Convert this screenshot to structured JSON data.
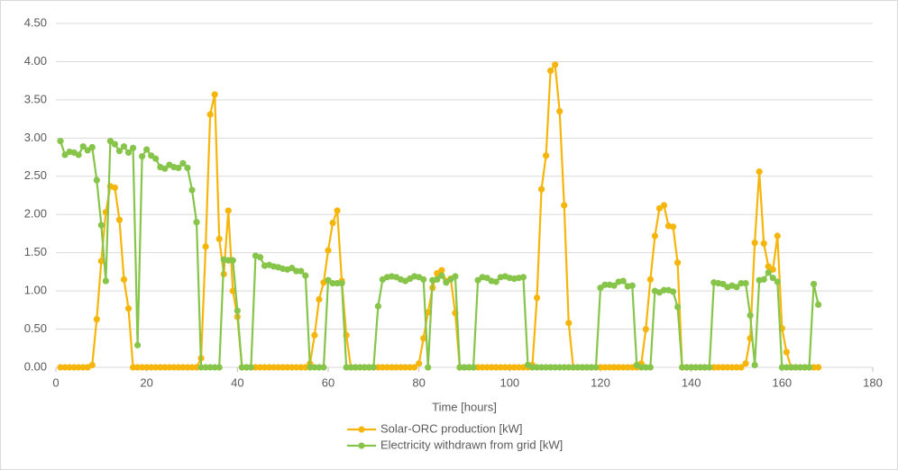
{
  "chart_data": {
    "type": "line",
    "xlabel": "Time [hours]",
    "xlim": [
      0,
      180
    ],
    "xticks": [
      0,
      20,
      40,
      60,
      80,
      100,
      120,
      140,
      160,
      180
    ],
    "ylim": [
      0,
      4.5
    ],
    "yticks": [
      {
        "value": 0,
        "label": "0.00"
      },
      {
        "value": 0.5,
        "label": "0.50"
      },
      {
        "value": 1,
        "label": "1.00"
      },
      {
        "value": 1.5,
        "label": "1.50"
      },
      {
        "value": 2,
        "label": "2.00"
      },
      {
        "value": 2.5,
        "label": "2.50"
      },
      {
        "value": 3,
        "label": "3.00"
      },
      {
        "value": 3.5,
        "label": "3.50"
      },
      {
        "value": 4,
        "label": "4.00"
      },
      {
        "value": 4.5,
        "label": "4.50"
      }
    ],
    "grid": true,
    "legend": "bottom",
    "x": [
      1,
      2,
      3,
      4,
      5,
      6,
      7,
      8,
      9,
      10,
      11,
      12,
      13,
      14,
      15,
      16,
      17,
      18,
      19,
      20,
      21,
      22,
      23,
      24,
      25,
      26,
      27,
      28,
      29,
      30,
      31,
      32,
      33,
      34,
      35,
      36,
      37,
      38,
      39,
      40,
      41,
      42,
      43,
      44,
      45,
      46,
      47,
      48,
      49,
      50,
      51,
      52,
      53,
      54,
      55,
      56,
      57,
      58,
      59,
      60,
      61,
      62,
      63,
      64,
      65,
      66,
      67,
      68,
      69,
      70,
      71,
      72,
      73,
      74,
      75,
      76,
      77,
      78,
      79,
      80,
      81,
      82,
      83,
      84,
      85,
      86,
      87,
      88,
      89,
      90,
      91,
      92,
      93,
      94,
      95,
      96,
      97,
      98,
      99,
      100,
      101,
      102,
      103,
      104,
      105,
      106,
      107,
      108,
      109,
      110,
      111,
      112,
      113,
      114,
      115,
      116,
      117,
      118,
      119,
      120,
      121,
      122,
      123,
      124,
      125,
      126,
      127,
      128,
      129,
      130,
      131,
      132,
      133,
      134,
      135,
      136,
      137,
      138,
      139,
      140,
      141,
      142,
      143,
      144,
      145,
      146,
      147,
      148,
      149,
      150,
      151,
      152,
      153,
      154,
      155,
      156,
      157,
      158,
      159,
      160,
      161,
      162,
      163,
      164,
      165,
      166,
      167,
      168
    ],
    "series": [
      {
        "name": "Solar-ORC production [kW]",
        "color": "#f5b50a",
        "values": [
          0,
          0,
          0,
          0,
          0,
          0,
          0,
          0.03,
          0.63,
          1.39,
          2.03,
          2.37,
          2.35,
          1.93,
          1.15,
          0.77,
          0,
          0,
          0,
          0,
          0,
          0,
          0,
          0,
          0,
          0,
          0,
          0,
          0,
          0,
          0,
          0.12,
          1.58,
          3.31,
          3.57,
          1.68,
          1.22,
          2.05,
          1.0,
          0.66,
          0,
          0,
          0,
          0,
          0,
          0,
          0,
          0,
          0,
          0,
          0,
          0,
          0,
          0,
          0,
          0.05,
          0.42,
          0.89,
          1.11,
          1.53,
          1.89,
          2.05,
          1.13,
          0.42,
          0,
          0,
          0,
          0,
          0,
          0,
          0,
          0,
          0,
          0,
          0,
          0,
          0,
          0,
          0,
          0.05,
          0.38,
          0.72,
          1.04,
          1.23,
          1.27,
          1.13,
          1.16,
          0.71,
          0,
          0,
          0,
          0,
          0,
          0,
          0,
          0,
          0,
          0,
          0,
          0,
          0,
          0,
          0,
          0,
          0.03,
          0.91,
          2.33,
          2.77,
          3.88,
          3.96,
          3.35,
          2.12,
          0.58,
          0,
          0,
          0,
          0,
          0,
          0,
          0,
          0,
          0,
          0,
          0,
          0,
          0,
          0,
          0,
          0.05,
          0.5,
          1.15,
          1.72,
          2.08,
          2.12,
          1.85,
          1.84,
          1.37,
          0,
          0,
          0,
          0,
          0,
          0,
          0,
          0,
          0,
          0,
          0,
          0,
          0,
          0,
          0.05,
          0.38,
          1.63,
          2.56,
          1.62,
          1.32,
          1.28,
          1.72,
          0.51,
          0.2,
          0,
          0,
          0,
          0,
          0,
          0,
          0
        ]
      },
      {
        "name": "Electricity withdrawn from grid [kW]",
        "color": "#86c44a",
        "values": [
          2.96,
          2.78,
          2.82,
          2.81,
          2.78,
          2.89,
          2.84,
          2.88,
          2.45,
          1.86,
          1.13,
          2.96,
          2.92,
          2.83,
          2.89,
          2.81,
          2.87,
          0.29,
          2.76,
          2.85,
          2.77,
          2.73,
          2.62,
          2.6,
          2.65,
          2.62,
          2.61,
          2.67,
          2.61,
          2.32,
          1.9,
          0,
          0,
          0,
          0,
          0,
          1.41,
          1.4,
          1.4,
          0.74,
          0,
          0,
          0,
          1.46,
          1.44,
          1.33,
          1.34,
          1.32,
          1.31,
          1.29,
          1.28,
          1.3,
          1.26,
          1.26,
          1.2,
          0,
          0,
          0,
          0,
          1.14,
          1.1,
          1.1,
          1.1,
          0,
          0,
          0,
          0,
          0,
          0,
          0,
          0.8,
          1.15,
          1.18,
          1.19,
          1.18,
          1.15,
          1.13,
          1.16,
          1.19,
          1.18,
          1.15,
          0,
          1.14,
          1.15,
          1.2,
          1.11,
          1.15,
          1.19,
          0,
          0,
          0,
          0,
          1.14,
          1.18,
          1.17,
          1.13,
          1.12,
          1.18,
          1.19,
          1.17,
          1.16,
          1.17,
          1.18,
          0.03,
          0,
          0,
          0,
          0,
          0,
          0,
          0,
          0,
          0,
          0,
          0,
          0,
          0,
          0,
          0,
          1.04,
          1.08,
          1.08,
          1.07,
          1.12,
          1.13,
          1.06,
          1.07,
          0.03,
          0,
          0,
          0,
          1.0,
          0.98,
          1.01,
          1.01,
          0.99,
          0.79,
          0,
          0,
          0,
          0,
          0,
          0,
          0,
          1.11,
          1.1,
          1.09,
          1.05,
          1.07,
          1.05,
          1.1,
          1.1,
          0.68,
          0.03,
          1.14,
          1.15,
          1.24,
          1.17,
          1.12,
          0,
          0,
          0,
          0,
          0,
          0,
          0,
          1.09,
          0.82
        ]
      }
    ]
  }
}
